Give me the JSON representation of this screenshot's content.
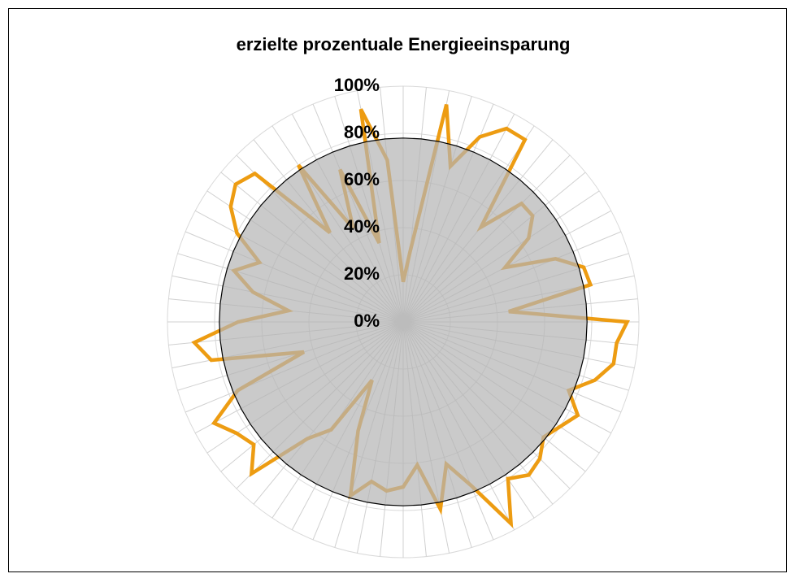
{
  "chart_data": {
    "type": "radar",
    "title": "erzielte prozentuale Energieeinsparung",
    "categories": [
      null,
      null,
      null,
      null,
      null,
      null,
      null,
      null,
      null,
      null,
      null,
      null,
      null,
      null,
      null,
      null,
      null,
      null,
      null,
      null,
      null,
      null,
      null,
      null,
      null,
      null,
      null,
      null,
      null,
      null,
      null,
      null,
      null,
      null,
      null,
      null,
      null,
      null,
      null,
      null,
      null,
      null,
      null,
      null,
      null,
      null,
      null,
      null,
      null,
      null,
      null,
      null,
      null,
      null,
      null,
      null,
      null,
      null,
      null,
      null,
      null,
      null,
      null,
      null
    ],
    "series": [
      {
        "color": "#ed9c12",
        "fill": false,
        "values": [
          17,
          30,
          94,
          69,
          85,
          93,
          93,
          52,
          71,
          71,
          64,
          49,
          70,
          80,
          81,
          45,
          95,
          91,
          91,
          85,
          76,
          84,
          80,
          77,
          82,
          84,
          80,
          97,
          75,
          63,
          81,
          61,
          70,
          72,
          69,
          77,
          50,
          28,
          55,
          64,
          91,
          82,
          85,
          91,
          76,
          44,
          83,
          89,
          70,
          49,
          65,
          75,
          66,
          80,
          88,
          92,
          89,
          49,
          80,
          45,
          70,
          35,
          92,
          69
        ]
      },
      {
        "color": "#b3b3b3",
        "fill": true,
        "values": [
          78,
          78,
          78,
          78,
          78,
          78,
          78,
          78,
          78,
          78,
          78,
          78,
          78,
          78,
          78,
          78,
          78,
          78,
          78,
          78,
          78,
          78,
          78,
          78,
          78,
          78,
          78,
          78,
          78,
          78,
          78,
          78,
          78,
          78,
          78,
          78,
          78,
          78,
          78,
          78,
          78,
          78,
          78,
          78,
          78,
          78,
          78,
          78,
          78,
          78,
          78,
          78,
          78,
          78,
          78,
          78,
          78,
          78,
          78,
          78,
          78,
          78,
          78,
          78
        ]
      }
    ],
    "ylim": [
      0,
      100
    ],
    "yticks": [
      {
        "value": 0,
        "label": "0%"
      },
      {
        "value": 20,
        "label": "20%"
      },
      {
        "value": 40,
        "label": "40%"
      },
      {
        "value": 60,
        "label": "60%"
      },
      {
        "value": 80,
        "label": "80%"
      },
      {
        "value": 100,
        "label": "100%"
      }
    ],
    "grid": true
  }
}
